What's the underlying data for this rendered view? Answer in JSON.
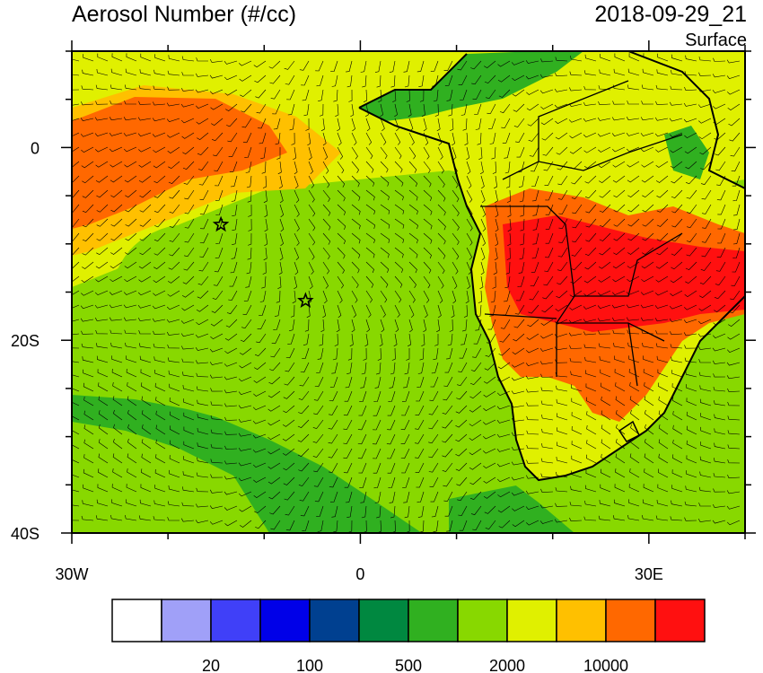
{
  "header": {
    "title": "Aerosol Number (#/cc)",
    "datetime": "2018-09-29_21",
    "level": "Surface"
  },
  "axes": {
    "x_ticks": [
      {
        "label": "30W",
        "lon": -30
      },
      {
        "label": "0",
        "lon": 0
      },
      {
        "label": "30E",
        "lon": 30
      }
    ],
    "y_ticks": [
      {
        "label": "0",
        "lat": 0
      },
      {
        "label": "20S",
        "lat": -20
      },
      {
        "label": "40S",
        "lat": -40
      }
    ],
    "lon_range": [
      -30,
      40
    ],
    "lat_range": [
      -40,
      10
    ]
  },
  "colorbar": {
    "colors": [
      "#ffffff",
      "#a0a0f8",
      "#4040f8",
      "#0000e8",
      "#004090",
      "#008840",
      "#30b020",
      "#88d800",
      "#e0f000",
      "#ffc000",
      "#ff6800",
      "#ff1010"
    ],
    "labels": [
      "20",
      "100",
      "500",
      "2000",
      "10000"
    ],
    "label_after_box": [
      2,
      4,
      6,
      8,
      10
    ]
  },
  "markers": [
    {
      "name": "star",
      "lon": -14.5,
      "lat": -8
    },
    {
      "name": "star",
      "lon": -5.7,
      "lat": -15.9
    }
  ],
  "colors": {
    "land_high": "#ff1010",
    "ocean_base": "#88d800",
    "coast_line": "#000000"
  }
}
